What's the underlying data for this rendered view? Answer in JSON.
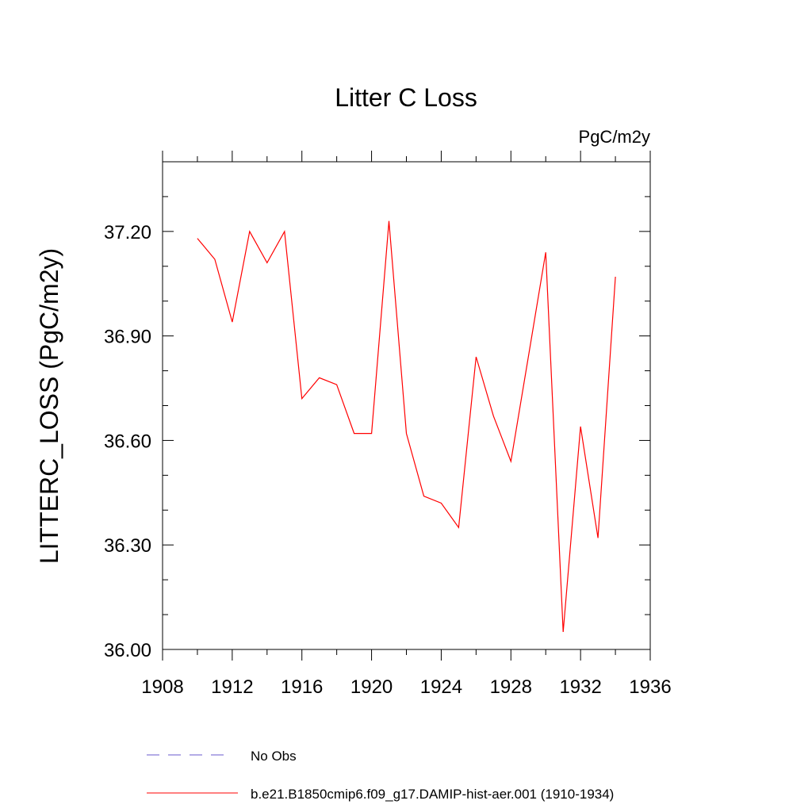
{
  "chart_data": {
    "type": "line",
    "title": "Litter C Loss",
    "units_label": "PgC/m2y",
    "ylabel": "LITTERC_LOSS  (PgC/m2y)",
    "xlabel": "",
    "xlim": [
      1908,
      1936
    ],
    "ylim": [
      36.0,
      37.4
    ],
    "x_ticks": [
      1908,
      1912,
      1916,
      1920,
      1924,
      1928,
      1932,
      1936
    ],
    "x_tick_labels": [
      "1908",
      "1912",
      "1916",
      "1920",
      "1924",
      "1928",
      "1932",
      "1936"
    ],
    "y_ticks": [
      36.0,
      36.3,
      36.6,
      36.9,
      37.2
    ],
    "y_tick_labels": [
      "36.00",
      "36.30",
      "36.60",
      "36.90",
      "37.20"
    ],
    "grid": false,
    "legend_placement": "bottom",
    "series": [
      {
        "name": "b.e21.B1850cmip6.f09_g17.DAMIP-hist-aer.001 (1910-1934)",
        "color": "#ff0000",
        "style": "solid",
        "x": [
          1910,
          1911,
          1912,
          1913,
          1914,
          1915,
          1916,
          1917,
          1918,
          1919,
          1920,
          1921,
          1922,
          1923,
          1924,
          1925,
          1926,
          1927,
          1928,
          1929,
          1930,
          1931,
          1932,
          1933,
          1934
        ],
        "y": [
          37.18,
          37.12,
          36.94,
          37.2,
          37.11,
          37.2,
          36.72,
          36.78,
          36.76,
          36.62,
          36.62,
          37.23,
          36.62,
          36.44,
          36.42,
          36.35,
          36.84,
          36.67,
          36.54,
          36.84,
          37.14,
          36.05,
          36.64,
          36.32,
          37.07
        ]
      }
    ],
    "legend": [
      {
        "label": "No Obs",
        "color": "#6a5acd",
        "style": "dashed"
      },
      {
        "label": "b.e21.B1850cmip6.f09_g17.DAMIP-hist-aer.001 (1910-1934)",
        "color": "#ff0000",
        "style": "solid"
      }
    ]
  }
}
